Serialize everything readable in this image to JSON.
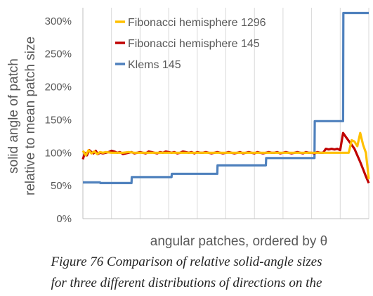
{
  "chart_data": {
    "type": "line",
    "title": "",
    "ylabel_line1": "solid angle of patch",
    "ylabel_line2": "relative to mean patch size",
    "xlabel": "angular patches, ordered by θ",
    "y_ticks": [
      "0%",
      "50%",
      "100%",
      "150%",
      "200%",
      "250%",
      "300%"
    ],
    "ylim": [
      0,
      320
    ],
    "xlim": [
      0,
      100
    ],
    "grid": "vertical",
    "legend": "top-left, inside plot",
    "series": [
      {
        "name": "Fibonacci hemisphere 1296",
        "color": "#FFC000",
        "x": [
          0,
          1,
          2,
          3,
          4,
          5,
          6,
          7,
          8,
          10,
          12,
          14,
          16,
          18,
          20,
          25,
          30,
          35,
          40,
          45,
          50,
          55,
          60,
          65,
          70,
          75,
          80,
          85,
          88,
          90,
          92,
          93,
          94,
          95,
          96,
          97,
          98,
          99,
          100
        ],
        "values": [
          103,
          96,
          104,
          99,
          102,
          98,
          101,
          100,
          101,
          100,
          100,
          100,
          101,
          100,
          100,
          100,
          100,
          100,
          100,
          100,
          100,
          100,
          100,
          100,
          100,
          100,
          100,
          100,
          100,
          100,
          100,
          100,
          119,
          117,
          110,
          130,
          112,
          100,
          60
        ]
      },
      {
        "name": "Fibonacci hemisphere 145",
        "color": "#C00000",
        "x": [
          0,
          0.7,
          1.4,
          2.2,
          3,
          3.7,
          4.5,
          5.2,
          6,
          7,
          8,
          9,
          10,
          11,
          12,
          13,
          14,
          15,
          16,
          17,
          18,
          19,
          20,
          21,
          22,
          23,
          24,
          25,
          26,
          27,
          28,
          29,
          30,
          31,
          32,
          33,
          34,
          35,
          36,
          37,
          38,
          39,
          40,
          41,
          42,
          43,
          44,
          45,
          46,
          47,
          48,
          49,
          50,
          51,
          52,
          53,
          54,
          55,
          56,
          57,
          58,
          59,
          60,
          61,
          62,
          63,
          64,
          65,
          66,
          67,
          68,
          69,
          70,
          71,
          72,
          73,
          74,
          75,
          76,
          77,
          78,
          79,
          80,
          81,
          82,
          83,
          84,
          85,
          86,
          87,
          88,
          89,
          90,
          91,
          92,
          93,
          94,
          95,
          96,
          97,
          98,
          99,
          100
        ],
        "values": [
          90,
          100,
          96,
          104,
          101,
          99,
          103,
          98,
          100,
          99,
          100,
          101,
          103,
          102,
          100,
          101,
          98,
          99,
          100,
          101,
          99,
          100,
          101,
          100,
          99,
          102,
          101,
          100,
          99,
          101,
          100,
          102,
          101,
          100,
          101,
          99,
          100,
          102,
          101,
          100,
          101,
          99,
          101,
          100,
          100,
          101,
          100,
          99,
          100,
          101,
          100,
          99,
          100,
          101,
          100,
          99,
          100,
          101,
          99,
          100,
          101,
          100,
          99,
          101,
          100,
          99,
          100,
          101,
          100,
          100,
          101,
          99,
          100,
          101,
          100,
          99,
          100,
          101,
          100,
          99,
          101,
          100,
          100,
          99,
          101,
          100,
          100,
          106,
          105,
          106,
          105,
          106,
          104,
          130,
          124,
          118,
          112,
          106,
          96,
          86,
          75,
          64,
          54
        ]
      },
      {
        "name": "Klems 145",
        "color": "#4F81BD",
        "x": [
          0,
          6,
          6.1,
          17,
          17.1,
          31,
          31.1,
          47,
          47.1,
          64,
          64.1,
          81,
          81.1,
          91,
          91.1,
          100
        ],
        "values": [
          55,
          55,
          54,
          54,
          63,
          63,
          68,
          68,
          81,
          81,
          92,
          92,
          148,
          148,
          312,
          312
        ]
      }
    ]
  },
  "caption": {
    "line1": "Figure 76 Comparison of relative solid-angle sizes",
    "line2": "for three different distributions of directions on the"
  }
}
